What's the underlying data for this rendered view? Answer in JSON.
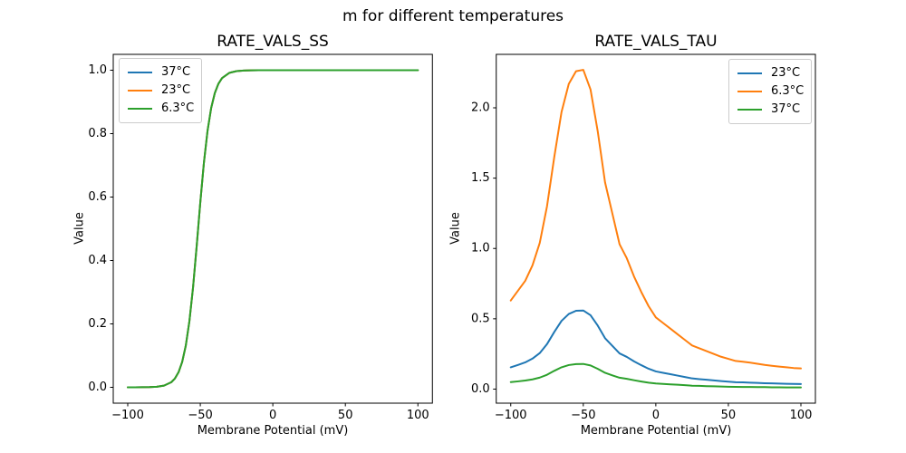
{
  "figure": {
    "suptitle": "m for different temperatures"
  },
  "chart_data": [
    {
      "type": "line",
      "title": "RATE_VALS_SS",
      "xlabel": "Membrane Potential (mV)",
      "ylabel": "Value",
      "xlim": [
        -110,
        110
      ],
      "ylim": [
        -0.05,
        1.05
      ],
      "grid": false,
      "legend_position": "upper-left",
      "xticks": {
        "values": [
          -100,
          -50,
          0,
          50,
          100
        ],
        "labels": [
          "−100",
          "−50",
          "0",
          "50",
          "100"
        ]
      },
      "yticks": {
        "values": [
          0,
          0.2,
          0.4,
          0.6,
          0.8,
          1.0
        ],
        "labels": [
          "0.0",
          "0.2",
          "0.4",
          "0.6",
          "0.8",
          "1.0"
        ]
      },
      "x": [
        -100,
        -95,
        -90,
        -85,
        -80,
        -75,
        -70,
        -67.5,
        -65,
        -62.5,
        -60,
        -57.5,
        -55,
        -52.5,
        -50,
        -47.5,
        -45,
        -42.5,
        -40,
        -37.5,
        -35,
        -30,
        -25,
        -20,
        -15,
        -10,
        -5,
        0,
        10,
        20,
        30,
        40,
        50,
        60,
        70,
        80,
        90,
        100
      ],
      "series": [
        {
          "name": "37°C",
          "color": "#1f77b4",
          "values": [
            0,
            0.0001,
            0.0002,
            0.0006,
            0.0018,
            0.0054,
            0.0161,
            0.0278,
            0.0474,
            0.0799,
            0.1314,
            0.2086,
            0.3148,
            0.4447,
            0.5826,
            0.7087,
            0.8091,
            0.8808,
            0.9279,
            0.9574,
            0.9751,
            0.9917,
            0.9972,
            0.9991,
            0.9997,
            0.9999,
            1,
            1,
            1,
            1,
            1,
            1,
            1,
            1,
            1,
            1,
            1,
            1
          ]
        },
        {
          "name": "23°C",
          "color": "#ff7f0e",
          "values": [
            0,
            0.0001,
            0.0002,
            0.0006,
            0.0018,
            0.0054,
            0.0161,
            0.0278,
            0.0474,
            0.0799,
            0.1314,
            0.2086,
            0.3148,
            0.4447,
            0.5826,
            0.7087,
            0.8091,
            0.8808,
            0.9279,
            0.9574,
            0.9751,
            0.9917,
            0.9972,
            0.9991,
            0.9997,
            0.9999,
            1,
            1,
            1,
            1,
            1,
            1,
            1,
            1,
            1,
            1,
            1,
            1
          ]
        },
        {
          "name": "6.3°C",
          "color": "#2ca02c",
          "values": [
            0,
            0.0001,
            0.0002,
            0.0006,
            0.0018,
            0.0054,
            0.0161,
            0.0278,
            0.0474,
            0.0799,
            0.1314,
            0.2086,
            0.3148,
            0.4447,
            0.5826,
            0.7087,
            0.8091,
            0.8808,
            0.9279,
            0.9574,
            0.9751,
            0.9917,
            0.9972,
            0.9991,
            0.9997,
            0.9999,
            1,
            1,
            1,
            1,
            1,
            1,
            1,
            1,
            1,
            1,
            1,
            1
          ]
        }
      ]
    },
    {
      "type": "line",
      "title": "RATE_VALS_TAU",
      "xlabel": "Membrane Potential (mV)",
      "ylabel": "Value",
      "xlim": [
        -110,
        110
      ],
      "ylim": [
        -0.1,
        2.38
      ],
      "grid": false,
      "legend_position": "upper-right",
      "xticks": {
        "values": [
          -100,
          -50,
          0,
          50,
          100
        ],
        "labels": [
          "−100",
          "−50",
          "0",
          "50",
          "100"
        ]
      },
      "yticks": {
        "values": [
          0,
          0.5,
          1.0,
          1.5,
          2.0
        ],
        "labels": [
          "0.0",
          "0.5",
          "1.0",
          "1.5",
          "2.0"
        ]
      },
      "x": [
        -100,
        -95,
        -90,
        -85,
        -80,
        -75,
        -70,
        -65,
        -60,
        -55,
        -50,
        -45,
        -40,
        -35,
        -30,
        -25,
        -20,
        -15,
        -10,
        -5,
        0,
        5,
        10,
        15,
        20,
        25,
        30,
        35,
        40,
        45,
        50,
        55,
        60,
        65,
        70,
        75,
        80,
        85,
        90,
        95,
        100
      ],
      "series": [
        {
          "name": "23°C",
          "color": "#1f77b4",
          "values": [
            0.155,
            0.172,
            0.19,
            0.217,
            0.256,
            0.32,
            0.406,
            0.485,
            0.534,
            0.557,
            0.559,
            0.525,
            0.451,
            0.362,
            0.308,
            0.254,
            0.229,
            0.197,
            0.17,
            0.145,
            0.126,
            0.116,
            0.106,
            0.096,
            0.086,
            0.076,
            0.071,
            0.067,
            0.062,
            0.057,
            0.053,
            0.049,
            0.048,
            0.046,
            0.044,
            0.042,
            0.041,
            0.039,
            0.038,
            0.037,
            0.036
          ]
        },
        {
          "name": "6.3°C",
          "color": "#ff7f0e",
          "values": [
            0.63,
            0.7,
            0.77,
            0.88,
            1.04,
            1.3,
            1.65,
            1.97,
            2.17,
            2.26,
            2.27,
            2.13,
            1.83,
            1.47,
            1.25,
            1.03,
            0.93,
            0.8,
            0.69,
            0.59,
            0.51,
            0.47,
            0.43,
            0.39,
            0.35,
            0.31,
            0.29,
            0.27,
            0.25,
            0.23,
            0.215,
            0.2,
            0.195,
            0.188,
            0.18,
            0.172,
            0.166,
            0.16,
            0.155,
            0.15,
            0.147
          ]
        },
        {
          "name": "37°C",
          "color": "#2ca02c",
          "values": [
            0.05,
            0.055,
            0.061,
            0.069,
            0.082,
            0.102,
            0.13,
            0.155,
            0.171,
            0.178,
            0.179,
            0.168,
            0.144,
            0.116,
            0.098,
            0.081,
            0.073,
            0.063,
            0.054,
            0.046,
            0.04,
            0.037,
            0.034,
            0.031,
            0.028,
            0.024,
            0.023,
            0.021,
            0.02,
            0.018,
            0.017,
            0.016,
            0.015,
            0.015,
            0.014,
            0.014,
            0.013,
            0.013,
            0.012,
            0.012,
            0.012
          ]
        }
      ]
    }
  ]
}
